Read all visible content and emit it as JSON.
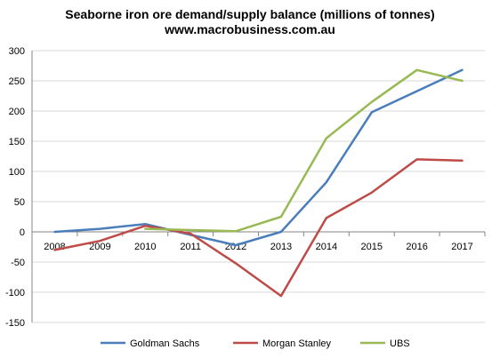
{
  "chart_data": {
    "type": "line",
    "title": "Seaborne iron ore demand/supply balance (millions of tonnes)",
    "subtitle": "www.macrobusiness.com.au",
    "xlabel": "",
    "ylabel": "",
    "categories": [
      "2008",
      "2009",
      "2010",
      "2011",
      "2012",
      "2013",
      "2014",
      "2015",
      "2016",
      "2017"
    ],
    "ylim": [
      -150,
      300
    ],
    "yticks": [
      300,
      250,
      200,
      150,
      100,
      50,
      0,
      -50,
      -100,
      -150
    ],
    "grid": true,
    "legend_position": "bottom",
    "series": [
      {
        "name": "Goldman Sachs",
        "color": "#4A7EBB",
        "values": [
          0,
          5,
          13,
          -5,
          -22,
          0,
          82,
          198,
          233,
          268
        ]
      },
      {
        "name": "Morgan Stanley",
        "color": "#BE4B48",
        "values": [
          -30,
          -15,
          10,
          -3,
          -52,
          -106,
          23,
          65,
          120,
          118
        ]
      },
      {
        "name": "UBS",
        "color": "#98B954",
        "values": [
          null,
          null,
          5,
          3,
          1,
          25,
          155,
          215,
          268,
          250
        ]
      }
    ]
  }
}
